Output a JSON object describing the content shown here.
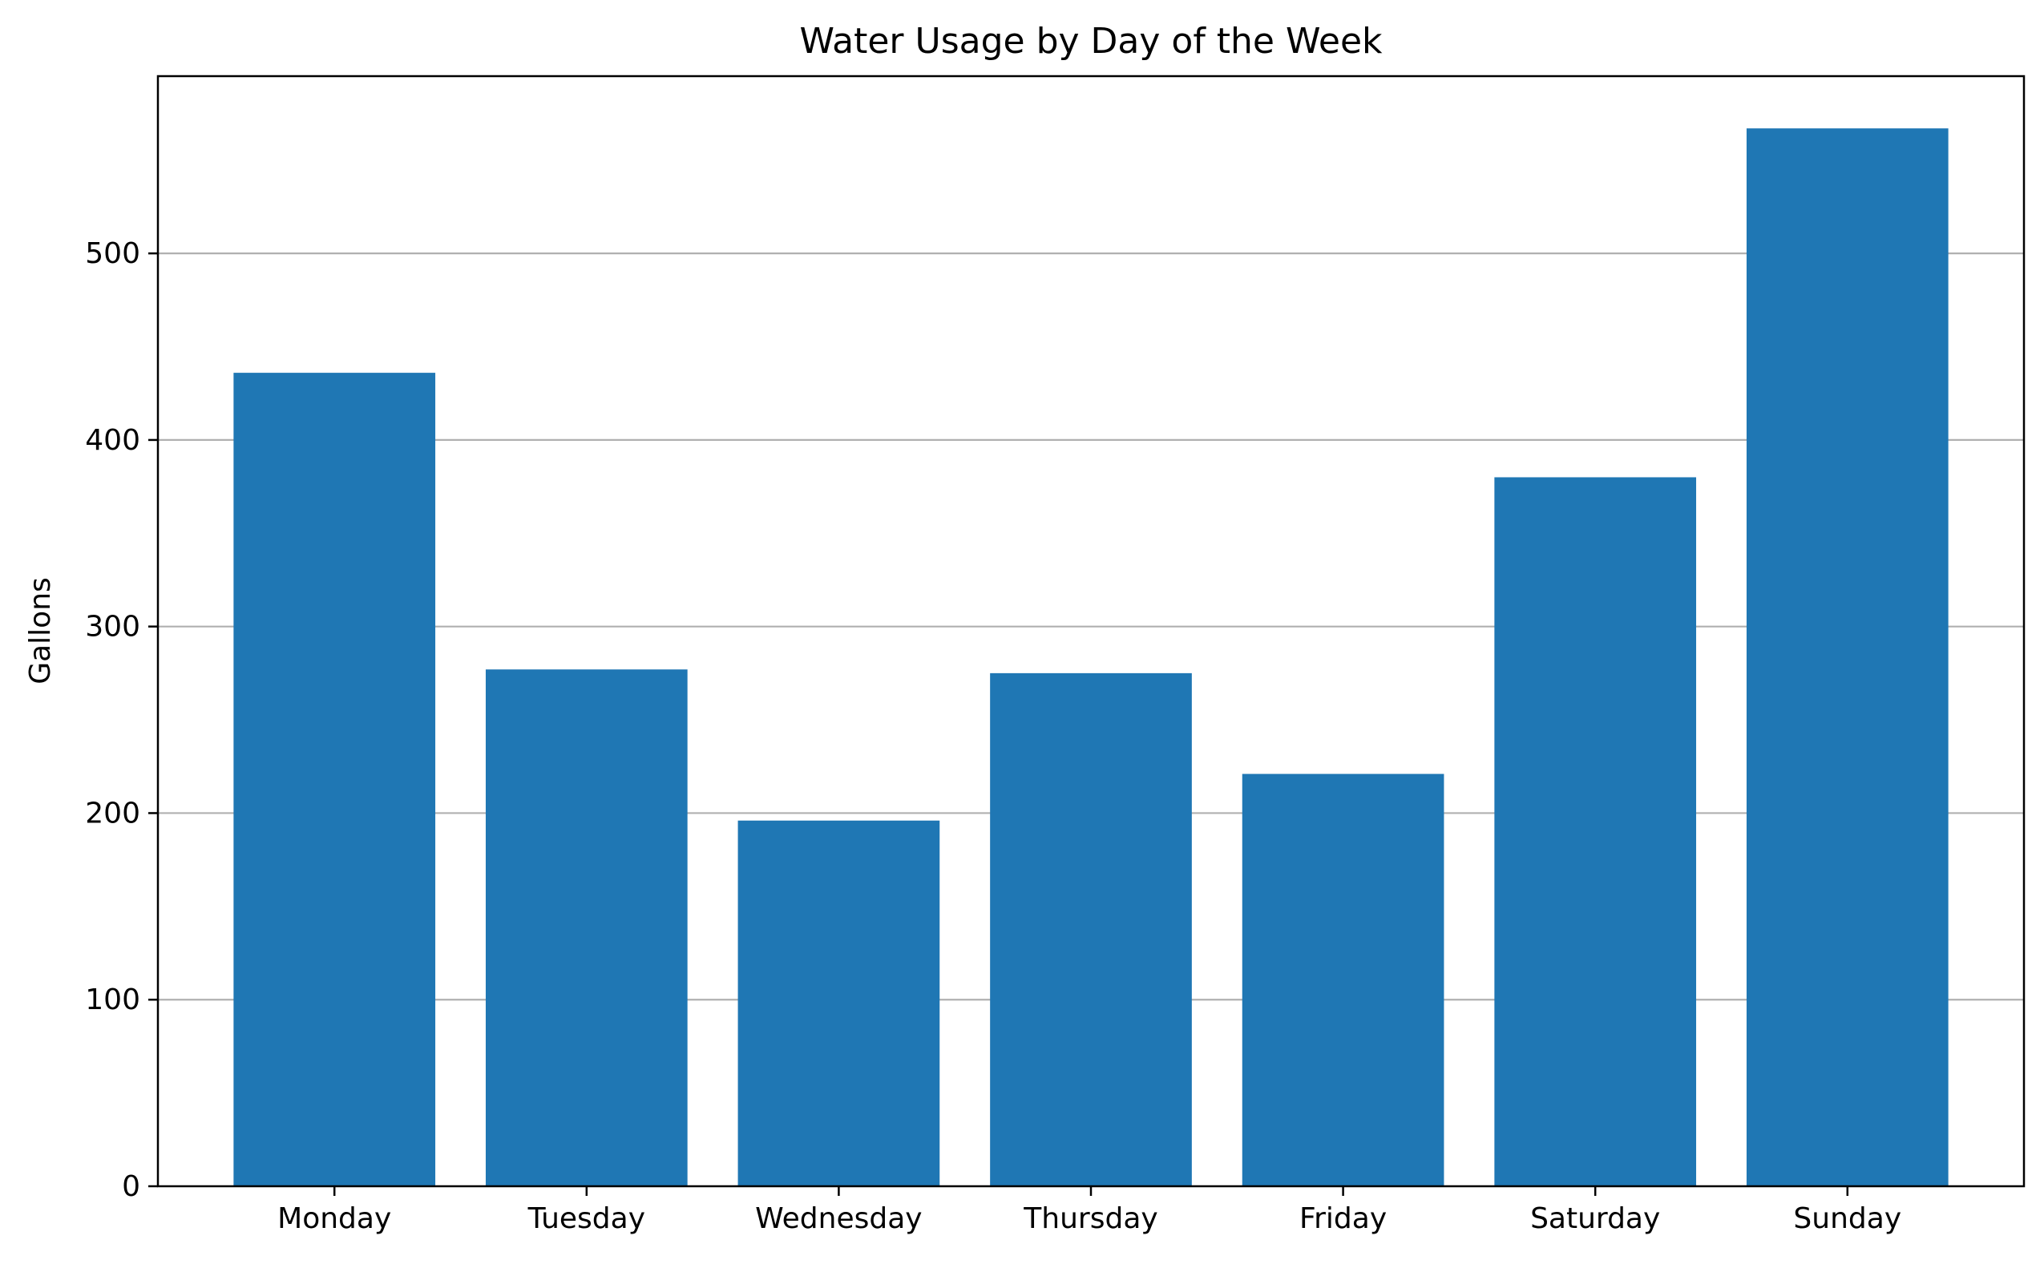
{
  "chart_data": {
    "type": "bar",
    "title": "Water Usage by Day of the Week",
    "xlabel": "",
    "ylabel": "Gallons",
    "categories": [
      "Monday",
      "Tuesday",
      "Wednesday",
      "Thursday",
      "Friday",
      "Saturday",
      "Sunday"
    ],
    "values": [
      436,
      277,
      196,
      275,
      221,
      380,
      567
    ],
    "ylim": [
      0,
      595
    ],
    "yticks": [
      0,
      100,
      200,
      300,
      400,
      500
    ],
    "grid": {
      "y": true,
      "x": false
    },
    "colors": {
      "bar": "#1f77b4",
      "grid": "#b0b0b0",
      "axis": "#000000"
    }
  }
}
